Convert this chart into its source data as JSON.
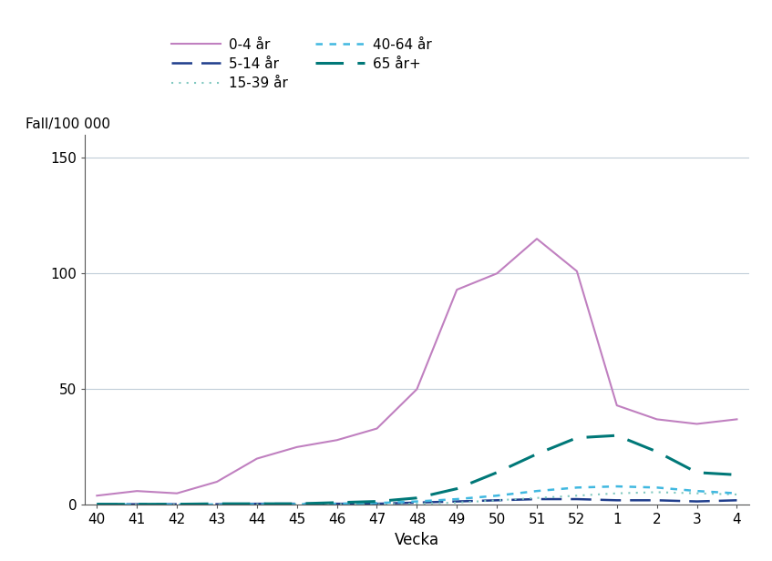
{
  "x_labels": [
    "40",
    "41",
    "42",
    "43",
    "44",
    "45",
    "46",
    "47",
    "48",
    "49",
    "50",
    "51",
    "52",
    "1",
    "2",
    "3",
    "4"
  ],
  "x_values": [
    0,
    1,
    2,
    3,
    4,
    5,
    6,
    7,
    8,
    9,
    10,
    11,
    12,
    13,
    14,
    15,
    16
  ],
  "series_order": [
    "0-4 år",
    "5-14 år",
    "15-39 år",
    "40-64 år",
    "65 år+"
  ],
  "series": {
    "0-4 år": {
      "values": [
        4,
        6,
        5,
        10,
        20,
        25,
        28,
        33,
        50,
        93,
        100,
        115,
        101,
        43,
        37,
        35,
        37
      ],
      "color": "#c080c0",
      "linestyle": "solid",
      "linewidth": 1.5,
      "dashes": null
    },
    "5-14 år": {
      "values": [
        0.3,
        0.3,
        0.3,
        0.3,
        0.5,
        0.5,
        0.5,
        0.5,
        1,
        1.5,
        2,
        2.5,
        2.5,
        2,
        2,
        1.5,
        2
      ],
      "color": "#1f3d8c",
      "linestyle": "dashed",
      "linewidth": 1.8,
      "dashes": [
        9,
        4
      ]
    },
    "15-39 år": {
      "values": [
        0.2,
        0.2,
        0.2,
        0.2,
        0.3,
        0.3,
        0.3,
        0.3,
        0.5,
        1,
        2,
        3,
        4,
        5,
        5.5,
        5,
        4.5
      ],
      "color": "#80c8c0",
      "linestyle": "dotted",
      "linewidth": 1.5,
      "dashes": [
        1,
        3
      ]
    },
    "40-64 år": {
      "values": [
        0.2,
        0.2,
        0.2,
        0.2,
        0.3,
        0.3,
        0.5,
        0.8,
        1.5,
        2.5,
        4,
        6,
        7.5,
        8,
        7.5,
        6,
        5
      ],
      "color": "#40b8e0",
      "linestyle": "dotted",
      "linewidth": 1.8,
      "dashes": [
        3,
        3
      ]
    },
    "65 år+": {
      "values": [
        0.3,
        0.3,
        0.3,
        0.5,
        0.5,
        0.5,
        1,
        1.5,
        3,
        7,
        14,
        22,
        29,
        30,
        23,
        14,
        13
      ],
      "color": "#007878",
      "linestyle": "dashed",
      "linewidth": 2.2,
      "dashes": [
        10,
        5
      ]
    }
  },
  "ylim": [
    0,
    160
  ],
  "yticks": [
    0,
    50,
    100,
    150
  ],
  "ylabel": "Fall/100 000",
  "xlabel": "Vecka",
  "background_color": "#ffffff",
  "grid_color": "#c0cdd8",
  "title_fontsize": 11,
  "axis_fontsize": 11
}
